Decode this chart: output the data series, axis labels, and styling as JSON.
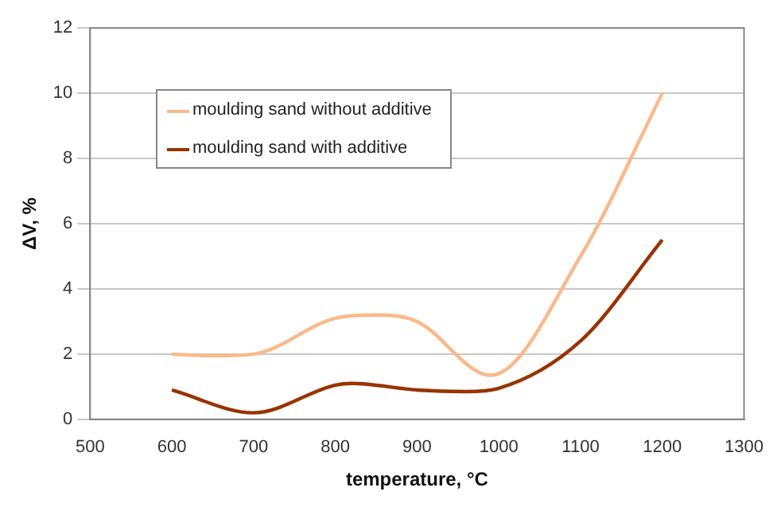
{
  "chart_data": {
    "type": "line",
    "xlabel": "temperature, °C",
    "ylabel": "ΔV, %",
    "xlim": [
      500,
      1300
    ],
    "xticks": [
      500,
      600,
      700,
      800,
      900,
      1000,
      1100,
      1200,
      1300
    ],
    "ylim": [
      0,
      12
    ],
    "yticks": [
      0,
      2,
      4,
      6,
      8,
      10,
      12
    ],
    "grid": "y",
    "legend": "top left",
    "marker": "none",
    "series": [
      {
        "name": "moulding sand without additive",
        "color": "#fab989",
        "x": [
          600,
          650,
          700,
          800,
          850,
          900,
          990,
          1100,
          1200
        ],
        "values": [
          2.0,
          1.95,
          2.0,
          3.1,
          3.2,
          3.0,
          1.35,
          5.0,
          10.0
        ]
      },
      {
        "name": "moulding sand with additive",
        "color": "#993300",
        "x": [
          600,
          700,
          800,
          820,
          900,
          960,
          1000,
          1100,
          1200
        ],
        "values": [
          0.9,
          0.2,
          1.05,
          1.1,
          0.9,
          0.85,
          0.95,
          2.4,
          5.5
        ]
      }
    ]
  }
}
